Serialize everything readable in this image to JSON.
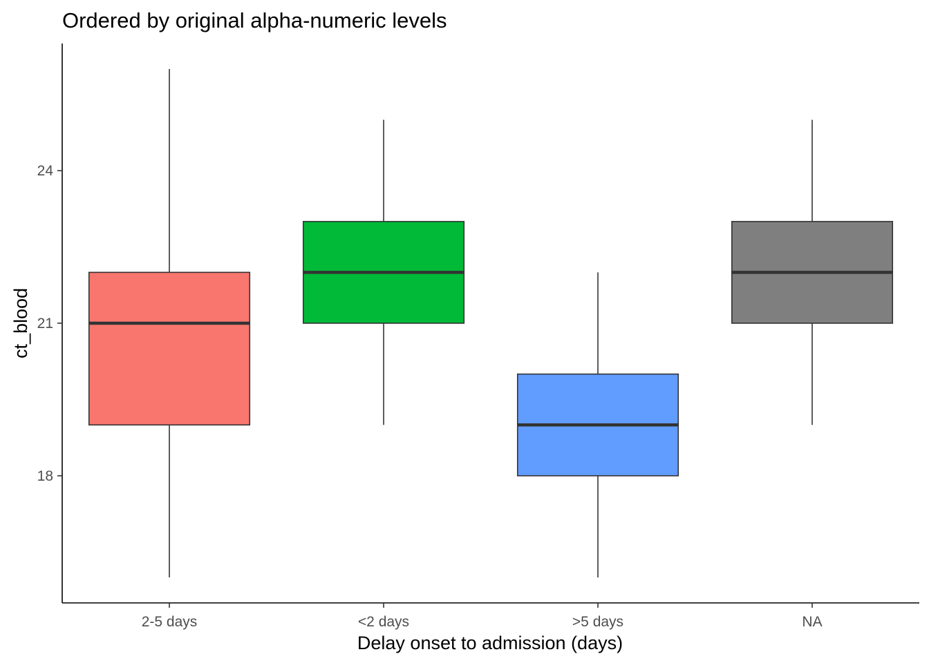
{
  "chart_data": {
    "type": "boxplot",
    "title": "Ordered by original alpha-numeric levels",
    "xlabel": "Delay onset to admission (days)",
    "ylabel": "ct_blood",
    "categories": [
      "2-5 days",
      "<2 days",
      ">5 days",
      "NA"
    ],
    "boxes": [
      {
        "category": "2-5 days",
        "min": 16,
        "q1": 19,
        "median": 21,
        "q3": 22,
        "max": 26,
        "color": "#F8766D"
      },
      {
        "category": "<2 days",
        "min": 19,
        "q1": 21,
        "median": 22,
        "q3": 23,
        "max": 25,
        "color": "#00BA38"
      },
      {
        "category": ">5 days",
        "min": 16,
        "q1": 18,
        "median": 19,
        "q3": 20,
        "max": 22,
        "color": "#619CFF"
      },
      {
        "category": "NA",
        "min": 19,
        "q1": 21,
        "median": 22,
        "q3": 23,
        "max": 25,
        "color": "#7F7F7F"
      }
    ],
    "y_ticks": [
      18,
      21,
      24
    ],
    "ylim": [
      15.5,
      26.5
    ],
    "grid": false,
    "legend": "none"
  }
}
